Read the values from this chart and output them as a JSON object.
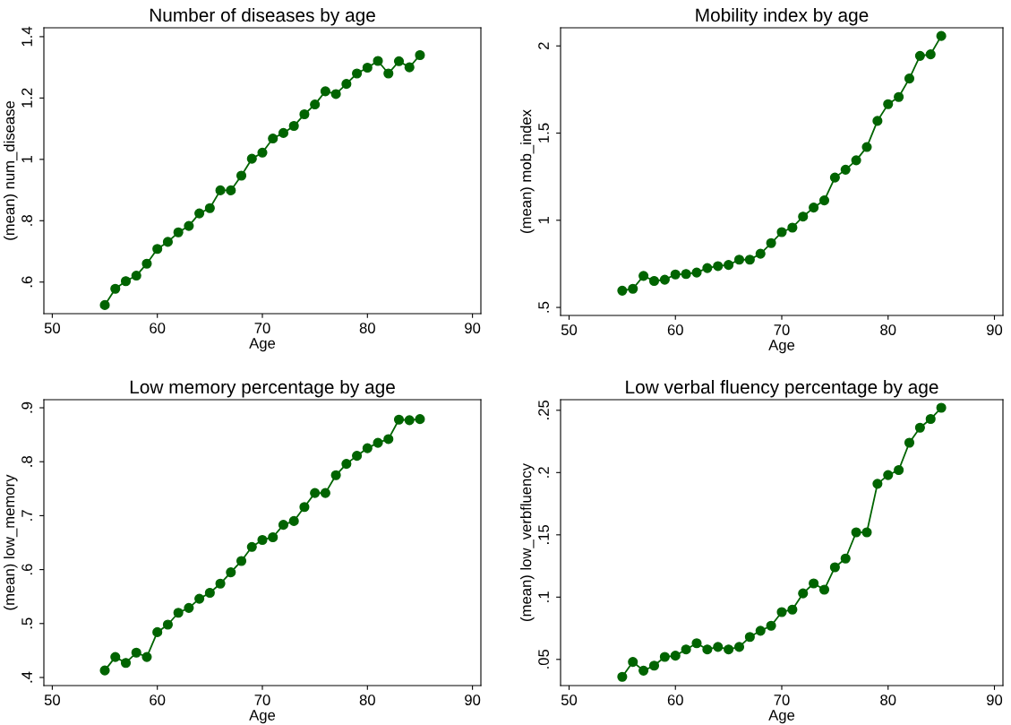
{
  "chart_data": [
    {
      "type": "line",
      "title": "Number of diseases by age",
      "xlabel": "Age",
      "ylabel": "(mean) num_disease",
      "marker": "circle",
      "line_style": "solid",
      "grid": false,
      "legend": false,
      "x": [
        55,
        56,
        57,
        58,
        59,
        60,
        61,
        62,
        63,
        64,
        65,
        66,
        67,
        68,
        69,
        70,
        71,
        72,
        73,
        74,
        75,
        76,
        77,
        78,
        79,
        80,
        81,
        82,
        83,
        84,
        85
      ],
      "series": [
        {
          "color": "#006400",
          "values": [
            0.525,
            0.578,
            0.603,
            0.621,
            0.66,
            0.708,
            0.731,
            0.762,
            0.783,
            0.824,
            0.841,
            0.899,
            0.899,
            0.947,
            1.002,
            1.022,
            1.068,
            1.086,
            1.109,
            1.147,
            1.179,
            1.222,
            1.213,
            1.246,
            1.28,
            1.299,
            1.321,
            1.28,
            1.32,
            1.3,
            1.34
          ]
        }
      ],
      "xlim": [
        49.2,
        90.8
      ],
      "xticks": [
        50,
        60,
        70,
        80,
        90
      ],
      "ylim": [
        0.497,
        1.429
      ],
      "yticks": [
        {
          "value": 0.6,
          "label": ".6"
        },
        {
          "value": 0.8,
          "label": ".8"
        },
        1,
        1.2,
        1.4
      ]
    },
    {
      "type": "line",
      "title": "Mobility index by age",
      "xlabel": "Age",
      "ylabel": "(mean) mob_index",
      "marker": "circle",
      "line_style": "solid",
      "grid": false,
      "legend": false,
      "x": [
        55,
        56,
        57,
        58,
        59,
        60,
        61,
        62,
        63,
        64,
        65,
        66,
        67,
        68,
        69,
        70,
        71,
        72,
        73,
        74,
        75,
        76,
        77,
        78,
        79,
        80,
        81,
        82,
        83,
        84,
        85
      ],
      "series": [
        {
          "color": "#006400",
          "values": [
            0.596,
            0.607,
            0.681,
            0.652,
            0.659,
            0.689,
            0.692,
            0.7,
            0.726,
            0.737,
            0.744,
            0.774,
            0.774,
            0.808,
            0.869,
            0.932,
            0.958,
            1.021,
            1.073,
            1.114,
            1.245,
            1.29,
            1.344,
            1.42,
            1.57,
            1.666,
            1.707,
            1.813,
            1.943,
            1.952,
            2.057
          ]
        }
      ],
      "xlim": [
        49.2,
        90.8
      ],
      "xticks": [
        50,
        60,
        70,
        80,
        90
      ],
      "ylim": [
        0.454,
        2.104
      ],
      "yticks": [
        {
          "value": 0.5,
          "label": ".5"
        },
        1,
        1.5,
        2
      ]
    },
    {
      "type": "line",
      "title": "Low memory percentage by age",
      "xlabel": "Age",
      "ylabel": "(mean) low_memory",
      "marker": "circle",
      "line_style": "solid",
      "grid": false,
      "legend": false,
      "x": [
        55,
        56,
        57,
        58,
        59,
        60,
        61,
        62,
        63,
        64,
        65,
        66,
        67,
        68,
        69,
        70,
        71,
        72,
        73,
        74,
        75,
        76,
        77,
        78,
        79,
        80,
        81,
        82,
        83,
        84,
        85
      ],
      "series": [
        {
          "color": "#006400",
          "values": [
            0.413,
            0.438,
            0.427,
            0.446,
            0.438,
            0.484,
            0.498,
            0.52,
            0.529,
            0.546,
            0.557,
            0.574,
            0.595,
            0.616,
            0.642,
            0.655,
            0.66,
            0.683,
            0.69,
            0.716,
            0.742,
            0.742,
            0.775,
            0.796,
            0.811,
            0.825,
            0.835,
            0.842,
            0.878,
            0.877,
            0.879
          ]
        }
      ],
      "xlim": [
        49.2,
        90.8
      ],
      "xticks": [
        50,
        60,
        70,
        80,
        90
      ],
      "ylim": [
        0.385,
        0.915
      ],
      "yticks": [
        {
          "value": 0.4,
          "label": ".4"
        },
        {
          "value": 0.5,
          "label": ".5"
        },
        {
          "value": 0.6,
          "label": ".6"
        },
        {
          "value": 0.7,
          "label": ".7"
        },
        {
          "value": 0.8,
          "label": ".8"
        },
        {
          "value": 0.9,
          "label": ".9"
        }
      ]
    },
    {
      "type": "line",
      "title": "Low verbal fluency percentage by age",
      "xlabel": "Age",
      "ylabel": "(mean) low_verbfluency",
      "marker": "circle",
      "line_style": "solid",
      "grid": false,
      "legend": false,
      "x": [
        55,
        56,
        57,
        58,
        59,
        60,
        61,
        62,
        63,
        64,
        65,
        66,
        67,
        68,
        69,
        70,
        71,
        72,
        73,
        74,
        75,
        76,
        77,
        78,
        79,
        80,
        81,
        82,
        83,
        84,
        85
      ],
      "series": [
        {
          "color": "#006400",
          "values": [
            0.036,
            0.048,
            0.041,
            0.045,
            0.052,
            0.053,
            0.058,
            0.063,
            0.058,
            0.06,
            0.058,
            0.06,
            0.068,
            0.073,
            0.077,
            0.088,
            0.09,
            0.103,
            0.111,
            0.106,
            0.124,
            0.131,
            0.152,
            0.152,
            0.191,
            0.198,
            0.202,
            0.224,
            0.236,
            0.243,
            0.252
          ]
        }
      ],
      "xlim": [
        49.2,
        90.8
      ],
      "xticks": [
        50,
        60,
        70,
        80,
        90
      ],
      "ylim": [
        0.029,
        0.2585
      ],
      "yticks": [
        {
          "value": 0.05,
          "label": ".05"
        },
        {
          "value": 0.1,
          "label": ".1"
        },
        {
          "value": 0.15,
          "label": ".15"
        },
        {
          "value": 0.2,
          "label": ".2"
        },
        {
          "value": 0.25,
          "label": ".25"
        }
      ]
    }
  ]
}
